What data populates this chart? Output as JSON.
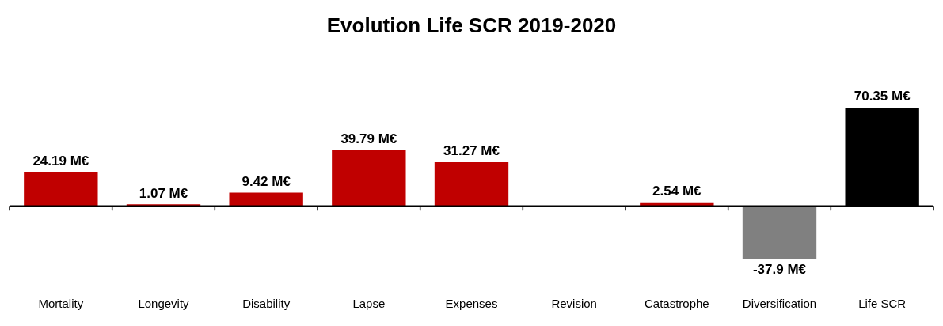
{
  "chart_data": {
    "type": "bar",
    "title": "Evolution Life SCR 2019-2020",
    "categories": [
      "Mortality",
      "Longevity",
      "Disability",
      "Lapse",
      "Expenses",
      "Revision",
      "Catastrophe",
      "Diversification",
      "Life SCR"
    ],
    "values": [
      24.19,
      1.07,
      9.42,
      39.79,
      31.27,
      null,
      2.54,
      -37.9,
      70.35
    ],
    "colors": [
      "#c00000",
      "#c00000",
      "#c00000",
      "#c00000",
      "#c00000",
      "#c00000",
      "#c00000",
      "#808080",
      "#000000"
    ],
    "value_labels": [
      "24.19 M€",
      "1.07 M€",
      "9.42 M€",
      "39.79 M€",
      "31.27 M€",
      null,
      "2.54 M€",
      "-37.9 M€",
      "70.35 M€"
    ],
    "grid": false,
    "legend": false
  }
}
